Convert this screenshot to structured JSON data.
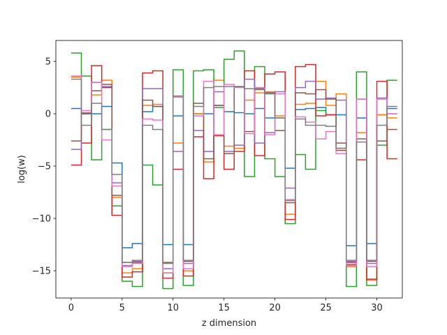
{
  "chart_data": {
    "type": "line",
    "step": "post",
    "xlabel": "z dimension",
    "ylabel": "log(w)",
    "xlim": [
      -1.5,
      32.5
    ],
    "ylim": [
      -17.6,
      7.0
    ],
    "xticks": [
      0,
      5,
      10,
      15,
      20,
      25,
      30
    ],
    "yticks": [
      -15,
      -10,
      -5,
      0,
      5
    ],
    "ytick_labels": [
      "−15",
      "−10",
      "−5",
      "0",
      "5"
    ],
    "grid": false,
    "x": [
      0,
      1,
      2,
      3,
      4,
      5,
      6,
      7,
      8,
      9,
      10,
      11,
      12,
      13,
      14,
      15,
      16,
      17,
      18,
      19,
      20,
      21,
      22,
      23,
      24,
      25,
      26,
      27,
      28,
      29,
      30,
      31
    ],
    "series": [
      {
        "color": "#1f77b4",
        "values": [
          0.5,
          0.0,
          0.0,
          0.7,
          -4.7,
          -12.8,
          -12.4,
          0.2,
          0.7,
          -12.5,
          -0.2,
          -12.5,
          0.0,
          0.0,
          0.8,
          0.2,
          0.1,
          0.0,
          0.5,
          -0.4,
          -0.4,
          -5.2,
          0.4,
          0.5,
          0.6,
          -0.1,
          -0.1,
          -12.6,
          -0.4,
          -12.4,
          -0.1,
          0.5
        ]
      },
      {
        "color": "#ff7f0e",
        "values": [
          3.5,
          0.0,
          1.8,
          3.2,
          -8.0,
          -15.2,
          -14.8,
          0.8,
          0.9,
          -15.2,
          -2.8,
          -15.0,
          0.0,
          -4.6,
          3.2,
          -3.1,
          -3.3,
          1.3,
          2.0,
          2.1,
          -0.2,
          -9.6,
          0.9,
          1.0,
          3.1,
          0.8,
          1.9,
          -14.6,
          -1.8,
          -15.9,
          -0.1,
          -0.4
        ]
      },
      {
        "color": "#2ca02c",
        "values": [
          5.8,
          3.6,
          -4.4,
          -1.5,
          -8.8,
          -16.0,
          -16.5,
          -4.9,
          -6.8,
          -16.7,
          4.2,
          -16.4,
          4.1,
          4.2,
          0.6,
          5.2,
          6.0,
          -6.0,
          4.5,
          -4.3,
          -6.0,
          -10.5,
          -3.9,
          -5.3,
          0.3,
          -0.1,
          -3.3,
          -16.5,
          4.0,
          -16.4,
          -3.0,
          3.2
        ]
      },
      {
        "color": "#d62728",
        "values": [
          -4.9,
          -2.8,
          4.6,
          2.5,
          -9.7,
          -15.6,
          -15.1,
          3.9,
          4.1,
          -15.7,
          -5.3,
          -15.5,
          -2.2,
          -6.2,
          -2.1,
          -5.3,
          -3.6,
          4.1,
          -4.0,
          3.8,
          4.0,
          -10.1,
          4.5,
          4.7,
          -0.2,
          -0.1,
          -3.5,
          -14.2,
          -4.4,
          -15.8,
          3.1,
          -4.3
        ]
      },
      {
        "color": "#9467bd",
        "values": [
          -3.4,
          0.1,
          3.0,
          2.6,
          -6.6,
          -14.5,
          -14.1,
          2.4,
          2.4,
          -14.8,
          -3.6,
          -14.3,
          -1.6,
          -3.6,
          2.1,
          -3.6,
          -3.0,
          3.3,
          -2.8,
          -1.8,
          2.1,
          -7.1,
          2.5,
          3.1,
          1.4,
          1.5,
          1.3,
          -14.1,
          1.4,
          -14.3,
          1.5,
          0.0
        ]
      },
      {
        "color": "#8c564b",
        "values": [
          -2.6,
          0.0,
          2.2,
          2.8,
          -7.8,
          -14.2,
          -14.2,
          1.3,
          0.7,
          -14.2,
          1.6,
          -14.1,
          1.0,
          -4.3,
          0.8,
          -3.8,
          2.6,
          -1.7,
          2.4,
          2.0,
          -1.6,
          -8.5,
          2.0,
          1.9,
          2.3,
          1.4,
          -2.8,
          -14.4,
          -2.4,
          -14.1,
          -2.6,
          -1.5
        ]
      },
      {
        "color": "#e377c2",
        "values": [
          3.6,
          0.3,
          3.0,
          -2.5,
          -6.9,
          -14.6,
          -14.3,
          -0.5,
          -0.6,
          -15.2,
          1.6,
          -14.8,
          -0.2,
          3.1,
          -2.0,
          2.8,
          2.5,
          -1.9,
          2.5,
          -2.0,
          1.9,
          -8.2,
          -0.3,
          -0.8,
          -2.4,
          -1.7,
          -3.8,
          -14.5,
          1.4,
          -14.6,
          1.4,
          0.0
        ]
      },
      {
        "color": "#7f7f7f",
        "values": [
          3.3,
          -1.1,
          1.0,
          -1.5,
          -5.8,
          -14.2,
          -14.0,
          -1.1,
          -1.5,
          -14.3,
          1.7,
          -14.0,
          0.7,
          2.5,
          2.6,
          2.6,
          2.6,
          2.4,
          2.3,
          1.9,
          -0.4,
          -8.3,
          -0.5,
          -1.1,
          -1.1,
          -1.2,
          -3.3,
          -14.0,
          -2.7,
          -14.0,
          -1.1,
          0.7
        ]
      }
    ]
  }
}
